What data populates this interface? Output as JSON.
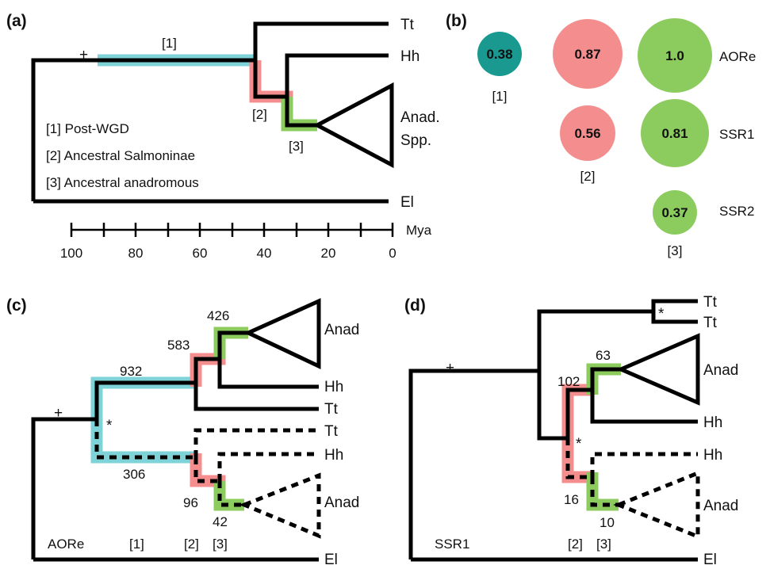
{
  "colors": {
    "post_wgd": "#7ed3d8",
    "salmoninae": "#f48e8e",
    "anadromous": "#8ccc5e",
    "bubble_teal": "#1a9990",
    "bubble_red": "#f48e8e",
    "bubble_green": "#8ccc5e"
  },
  "panel_a": {
    "tag": "(a)",
    "taxa": {
      "tt": "Tt",
      "hh": "Hh",
      "anad": "Anad.",
      "spp": "Spp.",
      "el": "El"
    },
    "plus": "+",
    "node_labels": {
      "n1": "[1]",
      "n2": "[2]",
      "n3": "[3]"
    },
    "legend": [
      "[1] Post-WGD",
      "[2] Ancestral Salmoninae",
      "[3] Ancestral anadromous"
    ],
    "timeline": {
      "unit": "Mya",
      "ticks": [
        "100",
        "80",
        "60",
        "40",
        "20",
        "0"
      ]
    }
  },
  "panel_b": {
    "tag": "(b)",
    "rows": [
      "AORe",
      "SSR1",
      "SSR2"
    ],
    "bubbles": [
      {
        "value": "0.38",
        "color": "teal",
        "col": "1",
        "row": "AORe"
      },
      {
        "value": "0.87",
        "color": "red",
        "col": "2",
        "row": "AORe"
      },
      {
        "value": "1.0",
        "color": "green",
        "col": "3",
        "row": "AORe"
      },
      {
        "value": "0.56",
        "color": "red",
        "col": "2",
        "row": "SSR1"
      },
      {
        "value": "0.81",
        "color": "green",
        "col": "3",
        "row": "SSR1"
      },
      {
        "value": "0.37",
        "color": "green",
        "col": "3",
        "row": "SSR2"
      }
    ],
    "col_labels": [
      "[1]",
      "[2]",
      "[3]"
    ]
  },
  "panel_c": {
    "tag": "(c)",
    "plus": "+",
    "star": "*",
    "counts": {
      "c426": "426",
      "c583": "583",
      "c932": "932",
      "c306": "306",
      "c96": "96",
      "c42": "42"
    },
    "taxa": {
      "anad_top": "Anad",
      "hh_top": "Hh",
      "tt_top": "Tt",
      "tt_dash": "Tt",
      "hh_dash": "Hh",
      "anad_dash": "Anad",
      "el": "El"
    },
    "footer": {
      "name": "AORe",
      "n1": "[1]",
      "n2": "[2]",
      "n3": "[3]"
    }
  },
  "panel_d": {
    "tag": "(d)",
    "plus": "+",
    "star1": "*",
    "star2": "*",
    "counts": {
      "c63": "63",
      "c102": "102",
      "c16": "16",
      "c10": "10"
    },
    "taxa": {
      "tt1": "Tt",
      "tt2": "Tt",
      "anad_top": "Anad",
      "hh_top": "Hh",
      "hh_dash": "Hh",
      "anad_dash": "Anad",
      "el": "El"
    },
    "footer": {
      "name": "SSR1",
      "n2": "[2]",
      "n3": "[3]"
    }
  }
}
